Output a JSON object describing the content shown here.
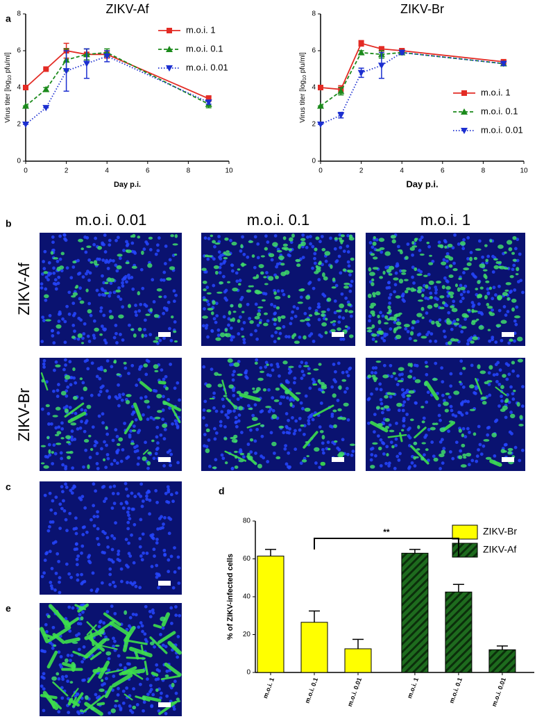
{
  "figure": {
    "panel_labels": [
      "a",
      "b",
      "c",
      "d",
      "e"
    ],
    "b": {
      "columns": [
        "m.o.i. 0.01",
        "m.o.i. 0.1",
        "m.o.i. 1"
      ],
      "rows": [
        "ZIKV-Af",
        "ZIKV-Br"
      ]
    }
  },
  "chart_data": [
    {
      "type": "line",
      "title": "ZIKV-Af",
      "x_label": "Day p.i.",
      "y_label": [
        "Virus titer [log",
        "10",
        " pfu/ml]"
      ],
      "x": [
        0,
        1,
        2,
        3,
        4,
        9
      ],
      "xlim": [
        0,
        10
      ],
      "xticks": [
        0,
        2,
        4,
        6,
        8,
        10
      ],
      "ylim": [
        0,
        8
      ],
      "yticks": [
        0,
        2,
        4,
        6,
        8
      ],
      "legend": "upper right",
      "series": [
        {
          "name": "m.o.i. 1",
          "color": "#e32b24",
          "dash": "solid",
          "marker": "square",
          "values": [
            4,
            5,
            6,
            5.8,
            5.8,
            3.4
          ],
          "errors": [
            0,
            0,
            0.4,
            0.3,
            0.2,
            0.15
          ]
        },
        {
          "name": "m.o.i. 0.1",
          "color": "#1b8a1b",
          "dash": "dashed",
          "marker": "triangle-up",
          "values": [
            3,
            3.9,
            5.5,
            5.8,
            5.9,
            3.1
          ],
          "errors": [
            0,
            0.1,
            0.6,
            0.3,
            0.2,
            0.2
          ]
        },
        {
          "name": "m.o.i. 0.01",
          "color": "#1c2fd0",
          "dash": "dotted",
          "marker": "triangle-down",
          "values": [
            2,
            2.9,
            4.9,
            5.3,
            5.7,
            3.2
          ],
          "errors": [
            0,
            0,
            1.1,
            0.8,
            0.3,
            0.1
          ]
        }
      ]
    },
    {
      "type": "line",
      "title": "ZIKV-Br",
      "x_label": "Day p.i.",
      "y_label": [
        "Virus titer [log",
        "10",
        " pfu/ml]"
      ],
      "x": [
        0,
        1,
        2,
        3,
        4,
        9
      ],
      "xlim": [
        0,
        10
      ],
      "xticks": [
        0,
        2,
        4,
        6,
        8,
        10
      ],
      "ylim": [
        0,
        8
      ],
      "yticks": [
        0,
        2,
        4,
        6,
        8
      ],
      "legend": "center right",
      "series": [
        {
          "name": "m.o.i. 1",
          "color": "#e32b24",
          "dash": "solid",
          "marker": "square",
          "values": [
            4,
            3.9,
            6.4,
            6.1,
            6.0,
            5.4
          ],
          "errors": [
            0,
            0.2,
            0.15,
            0.1,
            0.1,
            0.1
          ]
        },
        {
          "name": "m.o.i. 0.1",
          "color": "#1b8a1b",
          "dash": "dashed",
          "marker": "triangle-up",
          "values": [
            3,
            3.8,
            5.9,
            5.8,
            5.9,
            5.3
          ],
          "errors": [
            0,
            0.2,
            0.1,
            0.2,
            0.1,
            0.1
          ]
        },
        {
          "name": "m.o.i. 0.01",
          "color": "#1c2fd0",
          "dash": "dotted",
          "marker": "triangle-down",
          "values": [
            2,
            2.5,
            4.8,
            5.2,
            5.9,
            5.3
          ],
          "errors": [
            0,
            0.15,
            0.25,
            0.7,
            0.1,
            0.1
          ]
        }
      ]
    },
    {
      "type": "bar",
      "y_label": "% of ZIKV-infected cells",
      "categories": [
        "m.o.i. 1",
        "m.o.i. 0.1",
        "m.o.i. 0.01"
      ],
      "ylim": [
        0,
        80
      ],
      "yticks": [
        0,
        20,
        40,
        60,
        80
      ],
      "annotation": "**",
      "legend": "upper right",
      "series": [
        {
          "name": "ZIKV-Br",
          "color": "#ffff00",
          "hatch": false,
          "values": [
            61.5,
            26.5,
            12.5
          ],
          "errors": [
            3.5,
            6,
            5
          ]
        },
        {
          "name": "ZIKV-Af",
          "color": "#1e6b1e",
          "hatch": true,
          "values": [
            63,
            42.5,
            12
          ],
          "errors": [
            2,
            4,
            2
          ]
        }
      ]
    }
  ]
}
